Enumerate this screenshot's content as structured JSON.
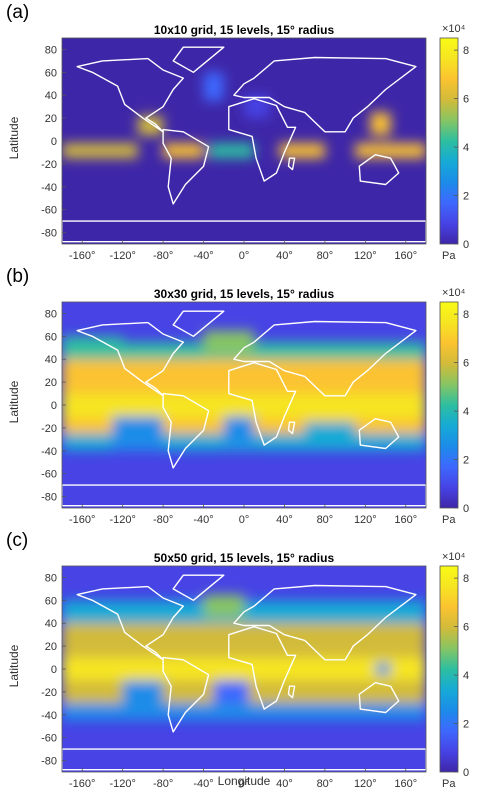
{
  "figure": {
    "xlabel": "Longitude",
    "ylabel": "Latitude",
    "colorbar_unit": "Pa",
    "colorbar_exponent": "×10⁴",
    "colorbar_ticks": [
      "0",
      "2",
      "4",
      "6",
      "8"
    ],
    "xticks": [
      "-160°",
      "-120°",
      "-80°",
      "-40°",
      "0°",
      "40°",
      "80°",
      "120°",
      "160°"
    ],
    "yticks": [
      "80",
      "60",
      "40",
      "20",
      "0",
      "-20",
      "-40",
      "-60",
      "-80"
    ]
  },
  "panels": [
    {
      "label": "(a)",
      "title": "10x10 grid, 15 levels, 15° radius"
    },
    {
      "label": "(b)",
      "title": "30x30 grid, 15 levels, 15° radius"
    },
    {
      "label": "(c)",
      "title": "50x50 grid, 15 levels, 15° radius"
    }
  ],
  "chart_data": [
    {
      "type": "heatmap",
      "title": "10x10 grid, 15 levels, 15° radius",
      "ylabel": "Latitude",
      "xlim": [
        -180,
        180
      ],
      "ylim": [
        -90,
        90
      ],
      "colorbar": {
        "range": [
          0,
          85000
        ],
        "ticks": [
          0,
          20000,
          40000,
          60000,
          80000
        ],
        "unit": "Pa"
      },
      "colormap": [
        "#3e26a8",
        "#4743e5",
        "#3d68fe",
        "#1c8ce9",
        "#16aad5",
        "#2ebfa1",
        "#87c563",
        "#d2bb3a",
        "#fbc330",
        "#f6e522",
        "#f9fb15"
      ],
      "background_value": 2000,
      "regions": [
        {
          "x": [
            -180,
            -105
          ],
          "y": [
            -15,
            -2
          ],
          "value": 62000
        },
        {
          "x": [
            -105,
            -80
          ],
          "y": [
            5,
            22
          ],
          "value": 58000
        },
        {
          "x": [
            -80,
            -40
          ],
          "y": [
            -15,
            -2
          ],
          "value": 68000
        },
        {
          "x": [
            -35,
            10
          ],
          "y": [
            -15,
            -2
          ],
          "value": 42000
        },
        {
          "x": [
            35,
            80
          ],
          "y": [
            -15,
            -2
          ],
          "value": 68000
        },
        {
          "x": [
            110,
            180
          ],
          "y": [
            -15,
            -2
          ],
          "value": 65000
        },
        {
          "x": [
            125,
            145
          ],
          "y": [
            5,
            25
          ],
          "value": 72000
        },
        {
          "x": [
            -40,
            -20
          ],
          "y": [
            35,
            60
          ],
          "value": 18000
        },
        {
          "x": [
            0,
            25
          ],
          "y": [
            20,
            40
          ],
          "value": 12000
        }
      ]
    },
    {
      "type": "heatmap",
      "title": "30x30 grid, 15 levels, 15° radius",
      "ylabel": "Latitude",
      "xlim": [
        -180,
        180
      ],
      "ylim": [
        -90,
        90
      ],
      "colorbar": {
        "range": [
          0,
          85000
        ],
        "ticks": [
          0,
          20000,
          40000,
          60000,
          80000
        ],
        "unit": "Pa"
      },
      "background_value": 5000,
      "regions": [
        {
          "x": [
            -180,
            180
          ],
          "y": [
            -40,
            -25
          ],
          "value": 30000
        },
        {
          "x": [
            -180,
            180
          ],
          "y": [
            40,
            55
          ],
          "value": 40000
        },
        {
          "x": [
            -180,
            180
          ],
          "y": [
            -25,
            40
          ],
          "value": 68000
        },
        {
          "x": [
            -180,
            180
          ],
          "y": [
            -12,
            10
          ],
          "value": 80000
        },
        {
          "x": [
            -130,
            -80
          ],
          "y": [
            -40,
            -10
          ],
          "value": 25000
        },
        {
          "x": [
            -20,
            10
          ],
          "y": [
            -35,
            -10
          ],
          "value": 28000
        },
        {
          "x": [
            60,
            110
          ],
          "y": [
            -35,
            -15
          ],
          "value": 35000
        },
        {
          "x": [
            -40,
            10
          ],
          "y": [
            45,
            65
          ],
          "value": 50000
        },
        {
          "x": [
            -180,
            -120
          ],
          "y": [
            45,
            60
          ],
          "value": 45000
        }
      ]
    },
    {
      "type": "heatmap",
      "title": "50x50 grid, 15 levels, 15° radius",
      "ylabel": "Latitude",
      "xlabel": "Longitude",
      "xlim": [
        -180,
        180
      ],
      "ylim": [
        -90,
        90
      ],
      "colorbar": {
        "range": [
          0,
          85000
        ],
        "ticks": [
          0,
          20000,
          40000,
          60000,
          80000
        ],
        "unit": "Pa"
      },
      "background_value": 5000,
      "regions": [
        {
          "x": [
            -180,
            180
          ],
          "y": [
            -45,
            -30
          ],
          "value": 28000
        },
        {
          "x": [
            -180,
            180
          ],
          "y": [
            40,
            60
          ],
          "value": 38000
        },
        {
          "x": [
            -180,
            180
          ],
          "y": [
            -30,
            40
          ],
          "value": 62000
        },
        {
          "x": [
            -180,
            180
          ],
          "y": [
            -10,
            10
          ],
          "value": 78000
        },
        {
          "x": [
            -120,
            -80
          ],
          "y": [
            -30,
            -10
          ],
          "value": 22000
        },
        {
          "x": [
            -30,
            5
          ],
          "y": [
            -30,
            -10
          ],
          "value": 18000
        },
        {
          "x": [
            130,
            145
          ],
          "y": [
            -5,
            5
          ],
          "value": 22000
        },
        {
          "x": [
            -40,
            0
          ],
          "y": [
            45,
            65
          ],
          "value": 50000
        }
      ]
    }
  ]
}
